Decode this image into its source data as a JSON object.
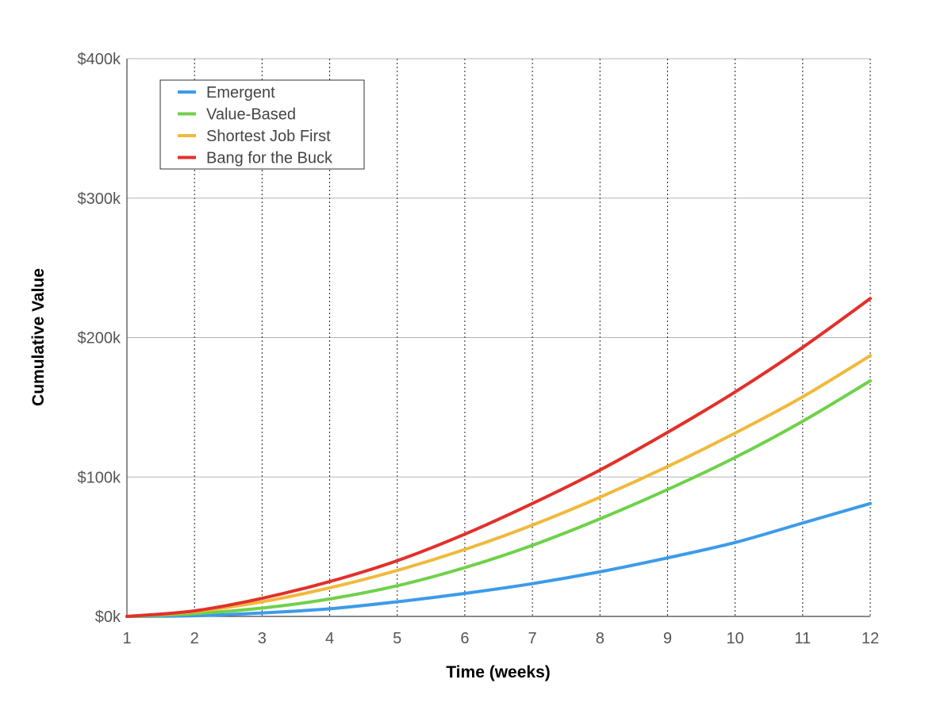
{
  "chart_data": {
    "type": "line",
    "title": "",
    "xlabel": "Time (weeks)",
    "ylabel": "Cumulative Value",
    "x": [
      1,
      2,
      3,
      4,
      5,
      6,
      7,
      8,
      9,
      10,
      11,
      12
    ],
    "xlim": [
      1,
      12
    ],
    "ylim": [
      0,
      400000
    ],
    "x_ticks": [
      "1",
      "2",
      "3",
      "4",
      "5",
      "6",
      "7",
      "8",
      "9",
      "10",
      "11",
      "12"
    ],
    "y_ticks": [
      {
        "value": 0,
        "label": "$0k"
      },
      {
        "value": 100000,
        "label": "$100k"
      },
      {
        "value": 200000,
        "label": "$200k"
      },
      {
        "value": 300000,
        "label": "$300k"
      },
      {
        "value": 400000,
        "label": "$400k"
      }
    ],
    "grid": {
      "horizontal": "solid",
      "vertical": "dotted"
    },
    "legend_position": "top-left",
    "series": [
      {
        "name": "Emergent",
        "color": "#3d9be9",
        "values": [
          0,
          500,
          2500,
          5500,
          10500,
          16500,
          23500,
          32000,
          42000,
          53000,
          67000,
          81000
        ]
      },
      {
        "name": "Value-Based",
        "color": "#6fd14a",
        "values": [
          0,
          2000,
          6000,
          12500,
          22000,
          35000,
          51000,
          70000,
          91000,
          114000,
          140000,
          169000
        ]
      },
      {
        "name": "Shortest Job First",
        "color": "#f0b93b",
        "values": [
          0,
          3500,
          10500,
          20500,
          33000,
          48000,
          65500,
          85500,
          107500,
          131500,
          157500,
          187000
        ]
      },
      {
        "name": "Bang for the Buck",
        "color": "#e2302a",
        "values": [
          0,
          4000,
          13000,
          25000,
          40000,
          59000,
          81000,
          105000,
          132000,
          161000,
          193000,
          228000
        ]
      }
    ]
  }
}
